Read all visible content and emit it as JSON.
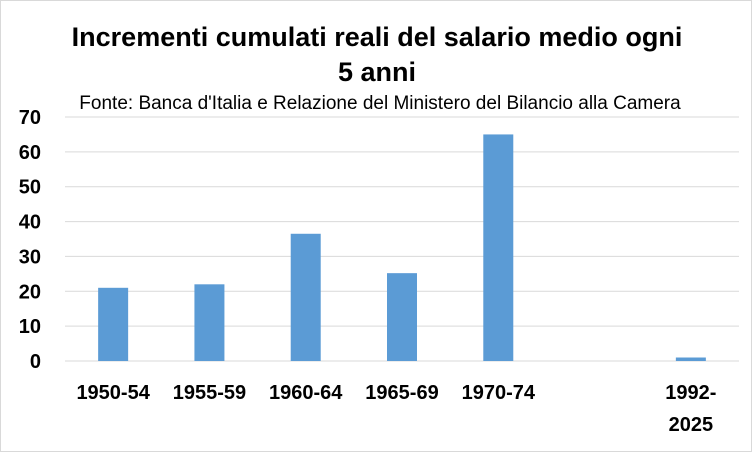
{
  "chart_data": {
    "type": "bar",
    "title_lines": [
      "Incrementi cumulati reali del salario medio ogni",
      "5 anni"
    ],
    "subtitle": "Fonte: Banca d'Italia e Relazione del Ministero del Bilancio alla Camera",
    "categories": [
      {
        "lines": [
          "1950-54"
        ]
      },
      {
        "lines": [
          "1955-59"
        ]
      },
      {
        "lines": [
          "1960-64"
        ]
      },
      {
        "lines": [
          "1965-69"
        ]
      },
      {
        "lines": [
          "1970-74"
        ]
      },
      {
        "lines": [
          ""
        ]
      },
      {
        "lines": [
          "1992-",
          "2025"
        ]
      }
    ],
    "values": [
      21,
      22,
      36.5,
      25.2,
      65,
      null,
      1
    ],
    "ylim": [
      0,
      70
    ],
    "yticks": [
      0,
      10,
      20,
      30,
      40,
      50,
      60,
      70
    ],
    "grid": true,
    "legend": "none",
    "bar_color": "#5b9bd5"
  }
}
